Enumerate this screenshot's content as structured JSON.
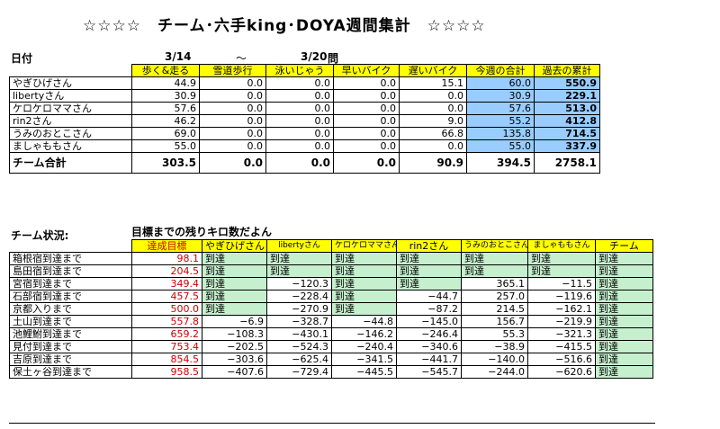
{
  "title": "☆☆☆☆　チーム･六手king･DOYA週間集計　☆☆☆☆",
  "week": {
    "label": "日付",
    "start": "3/14",
    "tilde": "～",
    "end": "3/20",
    "suffix": "問"
  },
  "weekly": {
    "headers": [
      "歩く&走る",
      "雪道歩行",
      "泳いじゃう",
      "早いバイク",
      "遅いバイク",
      "今週の合計",
      "過去の累計"
    ],
    "rows": [
      {
        "name": "やぎひげさん",
        "v": [
          "44.9",
          "0.0",
          "0.0",
          "0.0",
          "15.1",
          "60.0",
          "550.9"
        ]
      },
      {
        "name": "libertyさん",
        "v": [
          "30.9",
          "0.0",
          "0.0",
          "0.0",
          "0.0",
          "30.9",
          "229.1"
        ]
      },
      {
        "name": "ケロケロママさん",
        "v": [
          "57.6",
          "0.0",
          "0.0",
          "0.0",
          "0.0",
          "57.6",
          "513.0"
        ]
      },
      {
        "name": "rin2さん",
        "v": [
          "46.2",
          "0.0",
          "0.0",
          "0.0",
          "9.0",
          "55.2",
          "412.8"
        ]
      },
      {
        "name": "うみのおとこさん",
        "v": [
          "69.0",
          "0.0",
          "0.0",
          "0.0",
          "66.8",
          "135.8",
          "714.5"
        ]
      },
      {
        "name": "ましゃももさん",
        "v": [
          "55.0",
          "0.0",
          "0.0",
          "0.0",
          "0.0",
          "55.0",
          "337.9"
        ]
      }
    ],
    "total": {
      "name": "チーム合計",
      "v": [
        "303.5",
        "0.0",
        "0.0",
        "0.0",
        "90.9",
        "394.5",
        "2758.1"
      ]
    }
  },
  "status": {
    "label": "チーム状況:",
    "subtitle": "目標までの残りキロ数だよん",
    "headers": [
      "達成目標",
      "やぎひげさん",
      "libertyさん",
      "ケロケロママさん",
      "rin2さん",
      "うみのおとこさん",
      "ましゃももさん",
      "チーム"
    ],
    "rows": [
      {
        "name": "箱根宿到達まで",
        "goal": "98.1",
        "v": [
          "到達",
          "到達",
          "到達",
          "到達",
          "到達",
          "到達",
          "到達"
        ]
      },
      {
        "name": "島田宿到達まで",
        "goal": "204.5",
        "v": [
          "到達",
          "到達",
          "到達",
          "到達",
          "到達",
          "到達",
          "到達"
        ]
      },
      {
        "name": "宮宿到達まで",
        "goal": "349.4",
        "v": [
          "到達",
          "−120.3",
          "到達",
          "到達",
          "365.1",
          "−11.5",
          "到達"
        ]
      },
      {
        "name": "石部宿到達まで",
        "goal": "457.5",
        "v": [
          "到達",
          "−228.4",
          "到達",
          "−44.7",
          "257.0",
          "−119.6",
          "到達"
        ]
      },
      {
        "name": "京都入りまで",
        "goal": "500.0",
        "v": [
          "到達",
          "−270.9",
          "到達",
          "−87.2",
          "214.5",
          "−162.1",
          "到達"
        ]
      },
      {
        "name": "土山到達まで",
        "goal": "557.8",
        "v": [
          "−6.9",
          "−328.7",
          "−44.8",
          "−145.0",
          "156.7",
          "−219.9",
          "到達"
        ]
      },
      {
        "name": "池鯉鮒到達まで",
        "goal": "659.2",
        "v": [
          "−108.3",
          "−430.1",
          "−146.2",
          "−246.4",
          "55.3",
          "−321.3",
          "到達"
        ]
      },
      {
        "name": "見付到達まで",
        "goal": "753.4",
        "v": [
          "−202.5",
          "−524.3",
          "−240.4",
          "−340.6",
          "−38.9",
          "−415.5",
          "到達"
        ]
      },
      {
        "name": "吉原到達まで",
        "goal": "854.5",
        "v": [
          "−303.6",
          "−625.4",
          "−341.5",
          "−441.7",
          "−140.0",
          "−516.6",
          "到達"
        ]
      },
      {
        "name": "保土ヶ谷到達まで",
        "goal": "958.5",
        "v": [
          "−407.6",
          "−729.4",
          "−445.5",
          "−545.7",
          "−244.0",
          "−620.6",
          "到達"
        ]
      }
    ]
  },
  "colors": {
    "header_yellow": "#ffff00",
    "total_blue": "#99ccff",
    "reached_green": "#c6efce",
    "goal_red": "#cc0000"
  }
}
